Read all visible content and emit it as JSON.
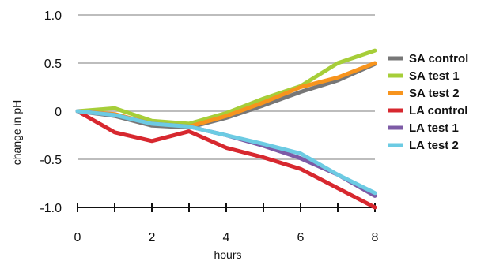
{
  "chart_data": {
    "type": "line",
    "title": "",
    "xlabel": "hours",
    "ylabel": "change in pH",
    "xlim": [
      0,
      8
    ],
    "ylim": [
      -1.0,
      1.0
    ],
    "x": [
      0,
      1,
      2,
      3,
      4,
      5,
      6,
      7,
      8
    ],
    "x_tick_values": [
      0,
      2,
      4,
      6,
      8
    ],
    "x_tick_labels": [
      "0",
      "2",
      "4",
      "6",
      "8"
    ],
    "y_tick_values": [
      1.0,
      0.5,
      0,
      -0.5,
      -1.0
    ],
    "y_tick_labels": [
      "1.0",
      "0.5",
      "0",
      "-0.5",
      "-1.0"
    ],
    "grid": "horizontal",
    "legend_position": "right",
    "series": [
      {
        "name": "SA control",
        "color": "#777777",
        "values": [
          0,
          -0.05,
          -0.15,
          -0.17,
          -0.07,
          0.06,
          0.2,
          0.32,
          0.49
        ]
      },
      {
        "name": "SA test 1",
        "color": "#a6ce39",
        "values": [
          0,
          0.03,
          -0.1,
          -0.13,
          -0.02,
          0.13,
          0.26,
          0.5,
          0.63
        ]
      },
      {
        "name": "SA test 2",
        "color": "#f7941d",
        "values": [
          0,
          -0.03,
          -0.13,
          -0.16,
          -0.05,
          0.09,
          0.25,
          0.35,
          0.5
        ]
      },
      {
        "name": "LA control",
        "color": "#d7282f",
        "values": [
          0,
          -0.22,
          -0.31,
          -0.21,
          -0.38,
          -0.48,
          -0.6,
          -0.8,
          -1.0
        ]
      },
      {
        "name": "LA test 1",
        "color": "#7d5ba6",
        "values": [
          0,
          -0.04,
          -0.13,
          -0.16,
          -0.25,
          -0.36,
          -0.49,
          -0.66,
          -0.88
        ]
      },
      {
        "name": "LA test 2",
        "color": "#6ccbe3",
        "values": [
          0,
          -0.04,
          -0.13,
          -0.16,
          -0.25,
          -0.34,
          -0.44,
          -0.66,
          -0.85
        ]
      }
    ]
  }
}
